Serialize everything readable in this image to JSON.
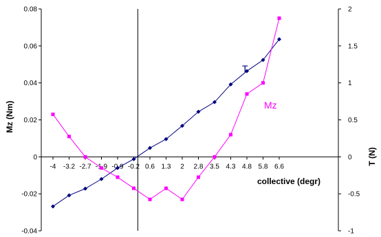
{
  "chart_data": {
    "type": "line",
    "title": "",
    "xlabel": "collective (degr)",
    "ylabel_left": "Mz (Nm)",
    "ylabel_right": "T (N)",
    "categories": [
      "-4",
      "-3.2",
      "-2.7",
      "-1.9",
      "-0.9",
      "-0.2",
      "0.6",
      "1.3",
      "2",
      "2.8",
      "3.5",
      "4.3",
      "4.8",
      "5.8",
      "6.6"
    ],
    "ylim_left": [
      -0.04,
      0.08
    ],
    "ylim_right": [
      -1,
      2
    ],
    "yticks_left": [
      "-0.04",
      "-0.02",
      "0",
      "0.02",
      "0.04",
      "0.06",
      "0.08"
    ],
    "yticks_right": [
      "-1",
      "-0.5",
      "0",
      "0.5",
      "1",
      "1.5",
      "2"
    ],
    "x_axis_crossing": "0",
    "grid": false,
    "legend": "inline labels",
    "series": [
      {
        "name": "T",
        "axis": "right",
        "color": "#000080",
        "marker": "diamond",
        "values": [
          -0.67,
          -0.52,
          -0.43,
          -0.3,
          -0.15,
          -0.03,
          0.12,
          0.24,
          0.42,
          0.61,
          0.74,
          0.98,
          1.16,
          1.31,
          1.59
        ]
      },
      {
        "name": "Mz",
        "axis": "left",
        "color": "#ff00ff",
        "marker": "square",
        "values": [
          0.023,
          0.011,
          0.0,
          -0.006,
          -0.011,
          -0.017,
          -0.023,
          -0.017,
          -0.023,
          -0.011,
          0.0,
          0.012,
          0.034,
          0.04,
          0.075
        ]
      }
    ]
  }
}
